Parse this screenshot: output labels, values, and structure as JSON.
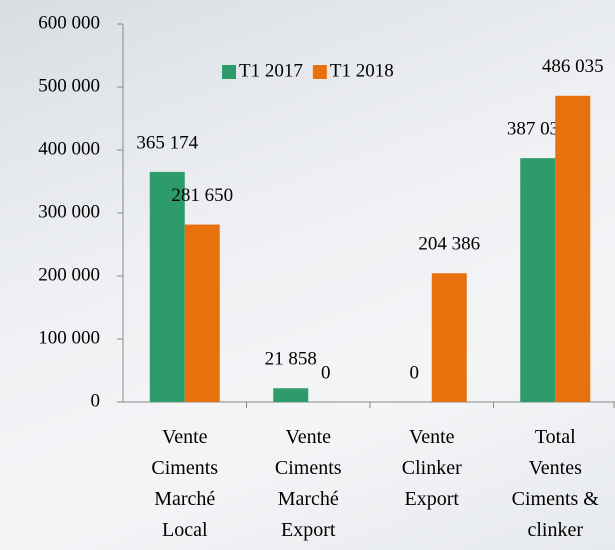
{
  "chart_data": {
    "type": "bar",
    "categories": [
      "Vente Ciments Marché Local",
      "Vente Ciments Marché Export",
      "Vente Clinker Export",
      "Total Ventes Ciments & clinker"
    ],
    "series": [
      {
        "name": "T1 2017",
        "color": "#2e9b6a",
        "values": [
          365174,
          21858,
          0,
          387032
        ],
        "value_labels": [
          "365 174",
          "21 858",
          "0",
          "387 032"
        ]
      },
      {
        "name": "T1 2018",
        "color": "#e8710e",
        "values": [
          281650,
          0,
          204386,
          486035
        ],
        "value_labels": [
          "281 650",
          "0",
          "204 386",
          "486 035"
        ]
      }
    ],
    "ylim": [
      0,
      600000
    ],
    "yticks": [
      {
        "value": 0,
        "label": "0"
      },
      {
        "value": 100000,
        "label": "100 000"
      },
      {
        "value": 200000,
        "label": "200 000"
      },
      {
        "value": 300000,
        "label": "300 000"
      },
      {
        "value": 400000,
        "label": "400 000"
      },
      {
        "value": 500000,
        "label": "500 000"
      },
      {
        "value": 600000,
        "label": "600 000"
      }
    ],
    "grid": false,
    "legend": "top"
  }
}
